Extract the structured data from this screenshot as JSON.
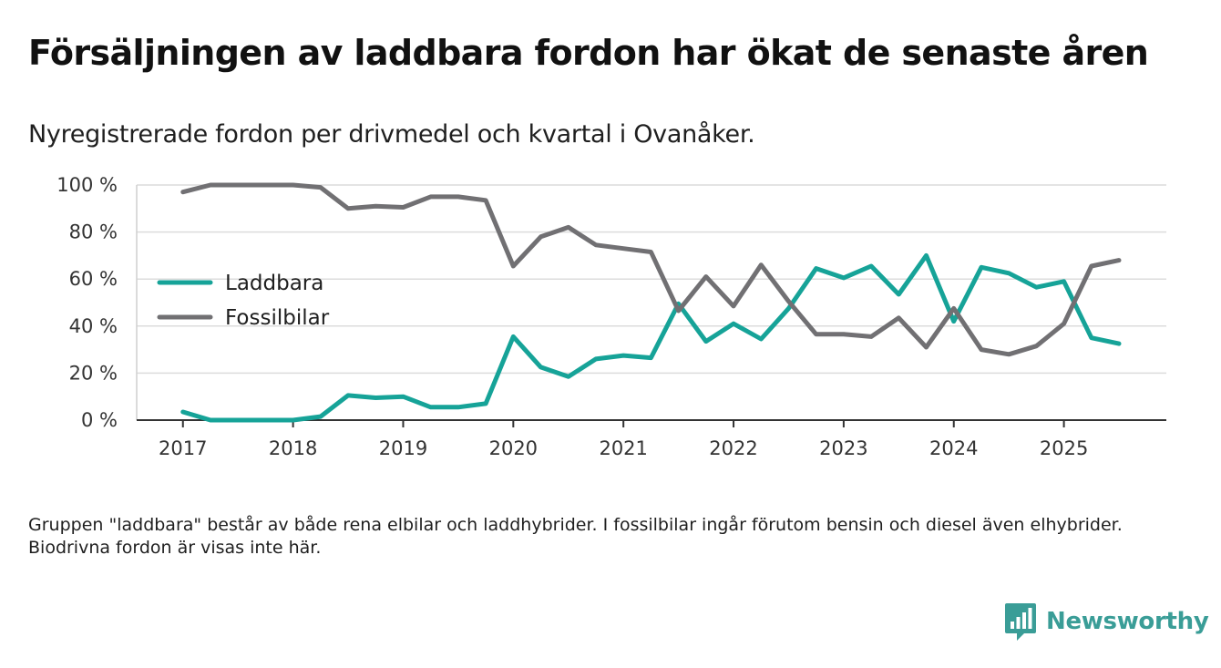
{
  "title": "Försäljningen av laddbara fordon har ökat de senaste åren",
  "subtitle": "Nyregistrerade fordon per drivmedel och kvartal i Ovanåker.",
  "note": "Gruppen \"laddbara\" består av både rena elbilar och laddhybrider. I fossilbilar ingår förutom bensin och diesel även elhybrider. Biodrivna fordon är visas inte här.",
  "brand": {
    "name": "Newsworthy",
    "icon": "newsworthy-logo-icon",
    "color": "#3a9d97"
  },
  "chart_data": {
    "type": "line",
    "title": "Försäljningen av laddbara fordon har ökat de senaste åren",
    "subtitle": "Nyregistrerade fordon per drivmedel och kvartal i Ovanåker.",
    "xlabel": "",
    "ylabel": "",
    "x": [
      2017.0,
      2017.25,
      2017.5,
      2017.75,
      2018.0,
      2018.25,
      2018.5,
      2018.75,
      2019.0,
      2019.25,
      2019.5,
      2019.75,
      2020.0,
      2020.25,
      2020.5,
      2020.75,
      2021.0,
      2021.25,
      2021.5,
      2021.75,
      2022.0,
      2022.25,
      2022.5,
      2022.75,
      2023.0,
      2023.25,
      2023.5,
      2023.75,
      2024.0,
      2024.25,
      2024.5,
      2024.75,
      2025.0,
      2025.25,
      2025.5
    ],
    "series": [
      {
        "name": "Laddbara",
        "color": "#16a398",
        "values": [
          3.5,
          0,
          0,
          0,
          0,
          1.5,
          10.5,
          9.5,
          10,
          5.5,
          5.5,
          7,
          35.5,
          22.5,
          18.5,
          26,
          27.5,
          26.5,
          49.5,
          33.5,
          41,
          34.5,
          47.5,
          64.5,
          60.5,
          65.5,
          53.5,
          70,
          42,
          65,
          62.5,
          56.5,
          59,
          35,
          32.5
        ]
      },
      {
        "name": "Fossilbilar",
        "color": "#717073",
        "values": [
          97,
          100,
          100,
          100,
          100,
          99,
          90,
          91,
          90.5,
          95,
          95,
          93.5,
          65.5,
          78,
          82,
          74.5,
          73,
          71.5,
          46.5,
          61,
          48.5,
          66,
          50.5,
          36.5,
          36.5,
          35.5,
          43.5,
          31,
          47.5,
          30,
          28,
          31.5,
          41,
          65.5,
          68
        ]
      }
    ],
    "xticks": [
      2017,
      2018,
      2019,
      2020,
      2021,
      2022,
      2023,
      2024,
      2025
    ],
    "xtick_labels": [
      "2017",
      "2018",
      "2019",
      "2020",
      "2021",
      "2022",
      "2023",
      "2024",
      "2025"
    ],
    "yticks": [
      0,
      20,
      40,
      60,
      80,
      100
    ],
    "ytick_labels": [
      "0 %",
      "20 %",
      "40 %",
      "60 %",
      "80 %",
      "100 %"
    ],
    "xlim": [
      2016.58,
      2025.93
    ],
    "ylim": [
      0,
      100
    ],
    "grid": true,
    "legend": "center-left",
    "legend_entries": [
      "Laddbara",
      "Fossilbilar"
    ]
  }
}
